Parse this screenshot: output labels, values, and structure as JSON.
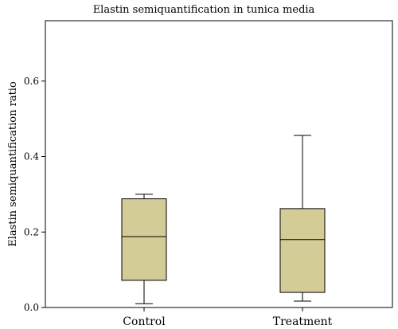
{
  "chart_data": {
    "type": "box",
    "title": "Elastin semiquantification in tunica media",
    "xlabel": "",
    "ylabel": "Elastin semiquantification ratio",
    "ylim": [
      0,
      0.76
    ],
    "yticks": [
      0.0,
      0.2,
      0.4,
      0.6
    ],
    "ytick_labels": [
      "0.0",
      "0.2",
      "0.4",
      "0.6"
    ],
    "grid": false,
    "box_color": "#d4cc96",
    "categories": [
      "Control",
      "Treatment"
    ],
    "boxes": [
      {
        "category": "Control",
        "min": 0.01,
        "q1": 0.072,
        "median": 0.188,
        "q3": 0.288,
        "max": 0.3
      },
      {
        "category": "Treatment",
        "min": 0.017,
        "q1": 0.04,
        "median": 0.18,
        "q3": 0.262,
        "max": 0.456
      }
    ]
  }
}
